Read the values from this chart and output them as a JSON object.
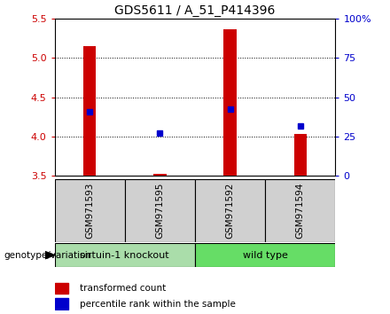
{
  "title": "GDS5611 / A_51_P414396",
  "samples": [
    "GSM971593",
    "GSM971595",
    "GSM971592",
    "GSM971594"
  ],
  "bar_tops": [
    5.15,
    3.52,
    5.37,
    4.03
  ],
  "bar_bottom": 3.5,
  "blue_y": [
    4.32,
    4.04,
    4.35,
    4.14
  ],
  "ylim": [
    3.5,
    5.5
  ],
  "yticks_left": [
    3.5,
    4.0,
    4.5,
    5.0,
    5.5
  ],
  "yticks_right": [
    0,
    25,
    50,
    75,
    100
  ],
  "groups": [
    {
      "label": "sirtuin-1 knockout",
      "samples": [
        0,
        1
      ],
      "color": "#aaddaa"
    },
    {
      "label": "wild type",
      "samples": [
        2,
        3
      ],
      "color": "#66dd66"
    }
  ],
  "bar_color": "#cc0000",
  "blue_color": "#0000cc",
  "bar_width": 0.18,
  "left_axis_color": "#cc0000",
  "right_axis_color": "#0000cc",
  "group_label": "genotype/variation",
  "legend_red": "transformed count",
  "legend_blue": "percentile rank within the sample",
  "title_fontsize": 10,
  "tick_fontsize": 8,
  "label_fontsize": 8,
  "sample_box_color": "#d0d0d0",
  "gridline_ticks": [
    4.0,
    4.5,
    5.0
  ]
}
